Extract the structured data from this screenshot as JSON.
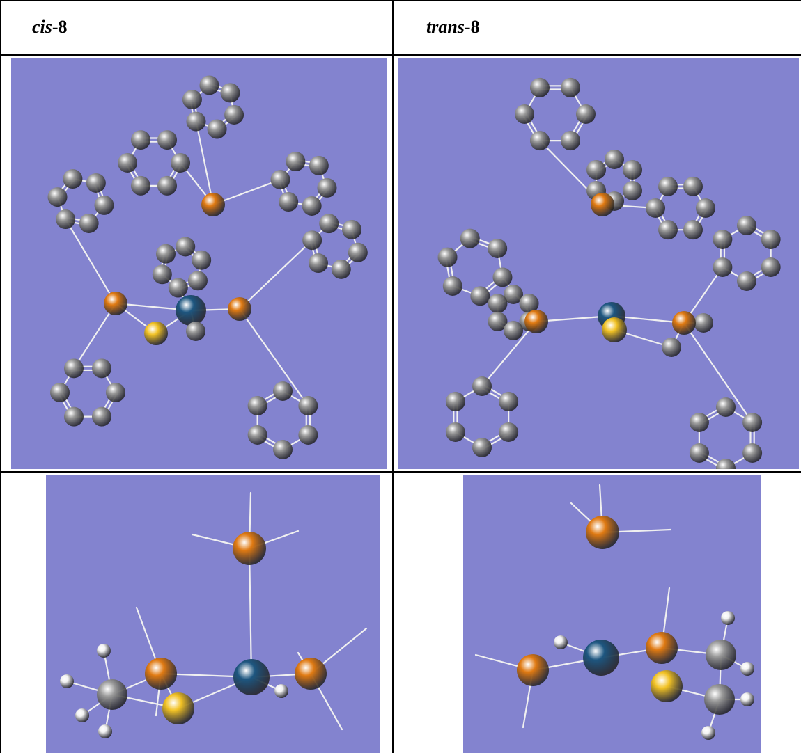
{
  "table": {
    "columns": [
      {
        "heading_prefix": "cis",
        "heading_suffix": "-8"
      },
      {
        "heading_prefix": "trans",
        "heading_suffix": "-8"
      }
    ]
  },
  "colors": {
    "panel_background": "#8383cf",
    "carbon": "#9a9a9a",
    "phosphorus": "#e07a12",
    "sulfur": "#f2c224",
    "metal": "#1d5680",
    "hydrogen": "#f2f2f2",
    "bond": "#f0f0f0"
  },
  "panels": [
    {
      "column": "cis-8",
      "view": "full-phenyl"
    },
    {
      "column": "trans-8",
      "view": "full-phenyl"
    },
    {
      "column": "cis-8",
      "view": "model"
    },
    {
      "column": "trans-8",
      "view": "model"
    }
  ]
}
